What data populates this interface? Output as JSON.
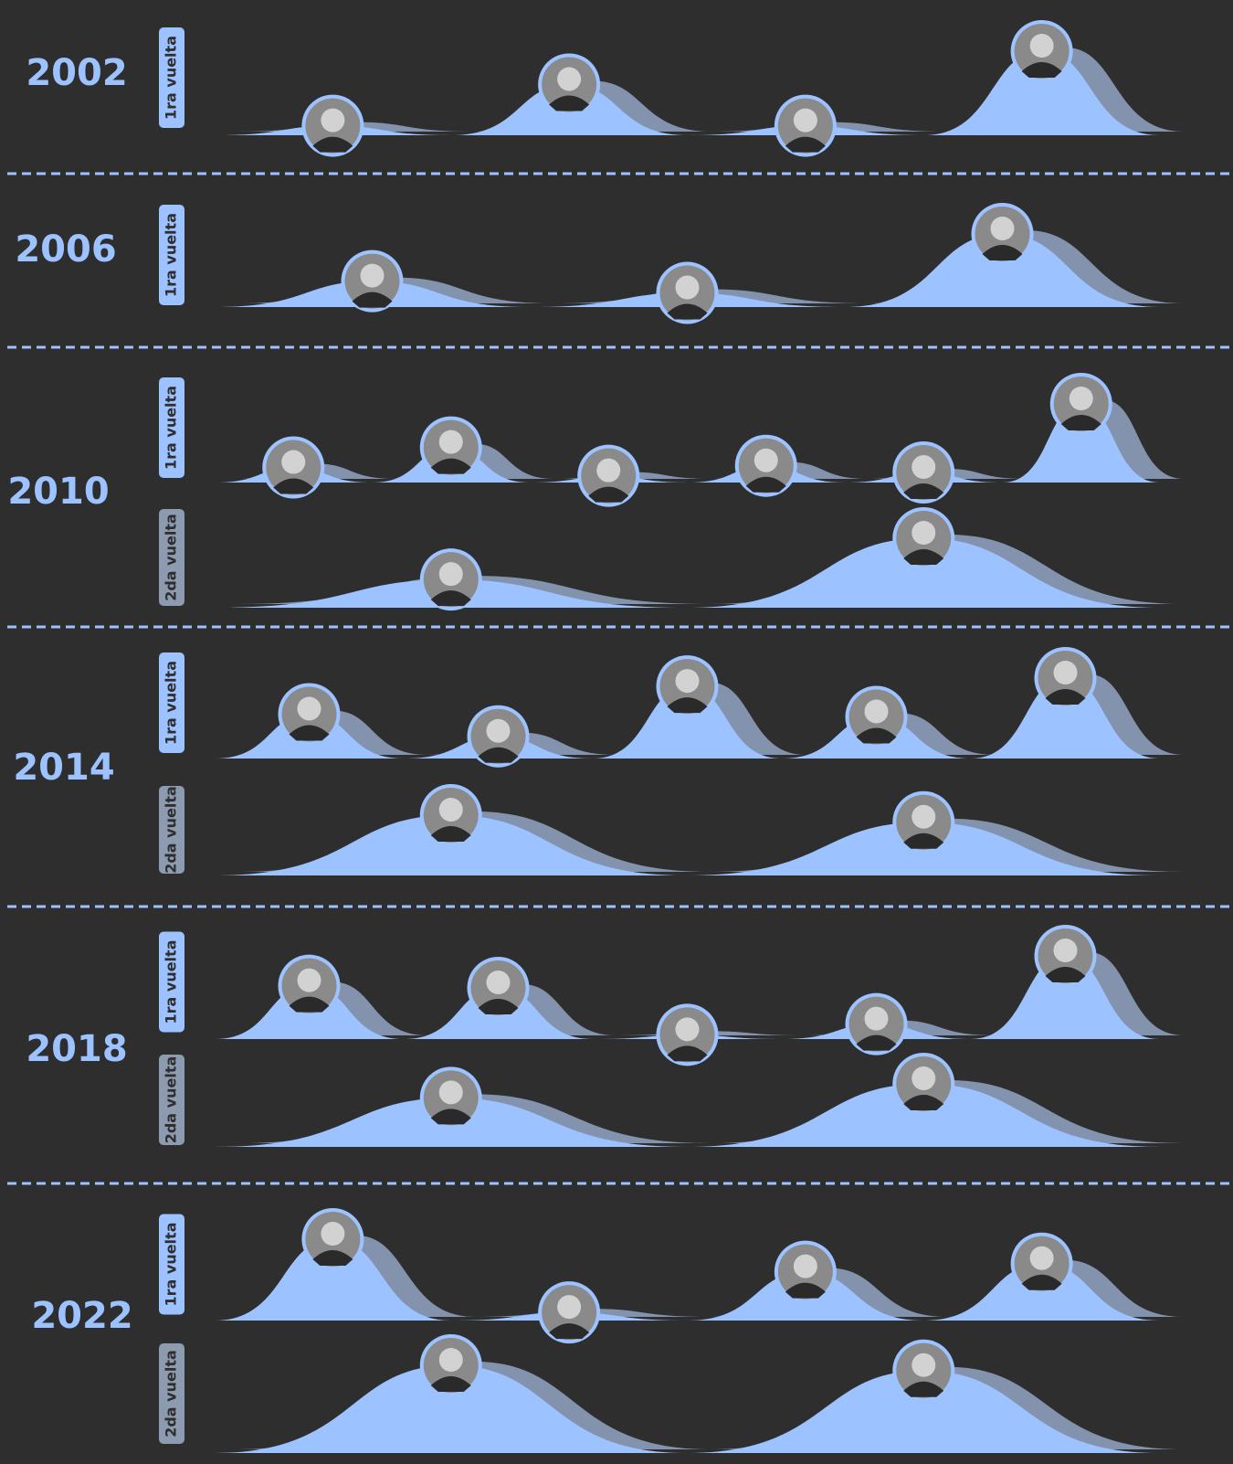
{
  "chart_data": [
    {
      "type": "mountain",
      "title": "2002",
      "series": [
        {
          "name": "1ra vuelta",
          "color": "#9cc2ff",
          "values": [
            6,
            32,
            6,
            53
          ]
        }
      ]
    },
    {
      "type": "mountain",
      "title": "2006",
      "series": [
        {
          "name": "1ra vuelta",
          "color": "#9cc2ff",
          "values": [
            22,
            12,
            62
          ]
        }
      ]
    },
    {
      "type": "mountain",
      "title": "2010",
      "series": [
        {
          "name": "1ra vuelta",
          "color": "#9cc2ff",
          "values": [
            9,
            21,
            4,
            10,
            6,
            47
          ]
        },
        {
          "name": "2da vuelta",
          "color": "#8d9bb0",
          "values": [
            28,
            69
          ]
        }
      ]
    },
    {
      "type": "mountain",
      "title": "2014",
      "series": [
        {
          "name": "1ra vuelta",
          "color": "#9cc2ff",
          "values": [
            16,
            8,
            26,
            15,
            29
          ]
        },
        {
          "name": "2da vuelta",
          "color": "#8d9bb0",
          "values": [
            51,
            45
          ]
        }
      ]
    },
    {
      "type": "mountain",
      "title": "2018",
      "series": [
        {
          "name": "1ra vuelta",
          "color": "#9cc2ff",
          "values": [
            25,
            24,
            2,
            7,
            39
          ]
        },
        {
          "name": "2da vuelta",
          "color": "#8d9bb0",
          "values": [
            42,
            54
          ]
        }
      ]
    },
    {
      "type": "mountain",
      "title": "2022",
      "series": [
        {
          "name": "1ra vuelta",
          "color": "#9cc2ff",
          "values": [
            40,
            4,
            24,
            28
          ]
        },
        {
          "name": "2da vuelta",
          "color": "#8d9bb0",
          "values": [
            50,
            47
          ]
        }
      ]
    }
  ]
}
